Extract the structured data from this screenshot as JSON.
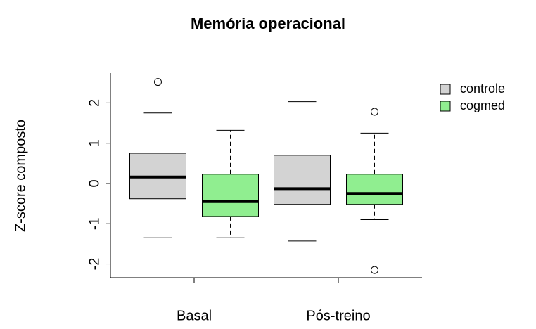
{
  "chart_data": {
    "type": "box",
    "title": "Memória operacional",
    "y_label": "Z-score composto",
    "categories": [
      "Basal",
      "Pós-treino"
    ],
    "series": [
      {
        "name": "controle",
        "color": "#d3d3d3",
        "values": [
          {
            "min": -1.35,
            "q1": -0.38,
            "median": 0.16,
            "q3": 0.75,
            "max": 1.75,
            "outliers": [
              2.52
            ]
          },
          {
            "min": -1.43,
            "q1": -0.52,
            "median": -0.13,
            "q3": 0.7,
            "max": 2.03,
            "outliers": []
          }
        ]
      },
      {
        "name": "cogmed",
        "color": "#90ee90",
        "values": [
          {
            "min": -1.35,
            "q1": -0.82,
            "median": -0.45,
            "q3": 0.23,
            "max": 1.32,
            "outliers": []
          },
          {
            "min": -0.9,
            "q1": -0.52,
            "median": -0.25,
            "q3": 0.23,
            "max": 1.25,
            "outliers": [
              1.78,
              -2.15
            ]
          }
        ]
      }
    ],
    "ylim": [
      -2.34,
      2.74
    ],
    "yticks": [
      -2,
      -1,
      0,
      1,
      2
    ],
    "legend": "topright"
  }
}
